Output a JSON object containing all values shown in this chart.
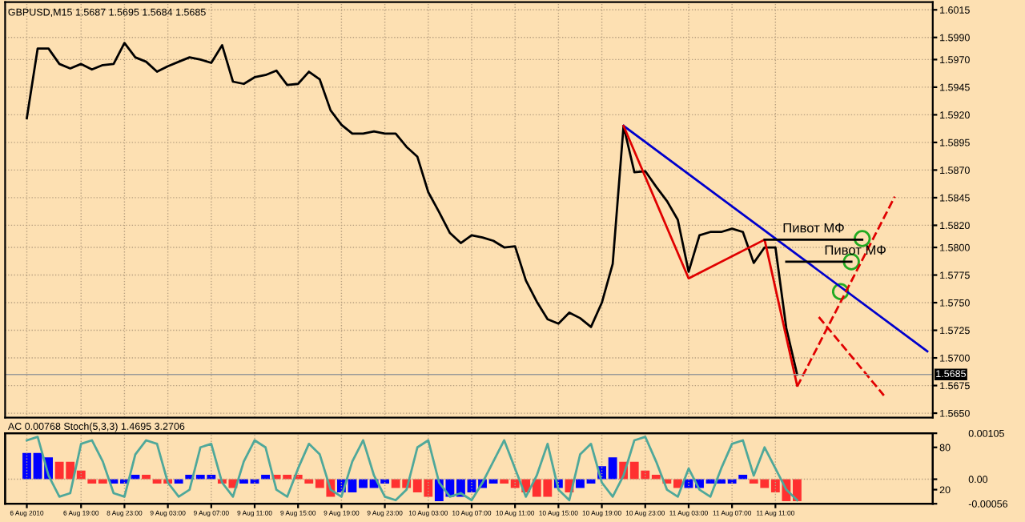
{
  "chart_data": [
    {
      "type": "line",
      "title": "GBPUSD,M15 1.5687 1.5695 1.5684 1.5685",
      "ylim": [
        1.5646,
        1.6022
      ],
      "tick_labels": "y",
      "grid": true,
      "line_style": "solid",
      "categories": [
        null,
        null,
        null,
        null,
        null,
        null,
        null,
        null,
        null,
        null,
        null,
        null,
        null,
        null,
        null,
        null,
        null,
        null,
        null,
        null,
        null,
        null,
        null,
        null,
        null,
        null,
        null,
        null,
        null,
        null,
        null,
        null,
        null,
        null,
        null,
        null,
        null,
        null,
        null,
        null,
        null,
        null,
        null,
        null,
        null,
        null,
        null,
        null,
        null,
        null,
        null,
        null,
        null,
        null,
        null,
        null,
        null,
        null,
        null,
        null,
        null,
        null,
        null,
        null,
        null,
        null,
        null,
        null,
        null,
        null,
        null,
        null,
        null,
        null,
        null,
        null,
        null,
        null,
        null,
        null,
        null,
        null,
        null,
        null
      ],
      "yticks": [
        {
          "value": 1.6015,
          "label": "1.6015"
        },
        {
          "value": 1.599,
          "label": "1.5990"
        },
        {
          "value": 1.597,
          "label": "1.5970"
        },
        {
          "value": 1.5945,
          "label": "1.5945"
        },
        {
          "value": 1.592,
          "label": "1.5920"
        },
        {
          "value": 1.5895,
          "label": "1.5895"
        },
        {
          "value": 1.587,
          "label": "1.5870"
        },
        {
          "value": 1.5845,
          "label": "1.5845"
        },
        {
          "value": 1.582,
          "label": "1.5820"
        },
        {
          "value": 1.58,
          "label": "1.5800"
        },
        {
          "value": 1.5775,
          "label": "1.5775"
        },
        {
          "value": 1.575,
          "label": "1.5750"
        },
        {
          "value": 1.5725,
          "label": "1.5725"
        },
        {
          "value": 1.57,
          "label": "1.5700"
        },
        {
          "value": 1.5675,
          "label": "1.5675"
        },
        {
          "value": 1.565,
          "label": "1.5650"
        }
      ],
      "series": [
        {
          "color": "#000000",
          "values": [
            1.5917,
            1.598,
            1.598,
            1.5966,
            1.5962,
            1.5966,
            1.5961,
            1.5965,
            1.5966,
            1.5985,
            1.5972,
            1.5968,
            1.5959,
            1.5964,
            1.5968,
            1.5972,
            1.597,
            1.5967,
            1.5983,
            1.595,
            1.5948,
            1.5954,
            1.5956,
            1.596,
            1.5947,
            1.5948,
            1.5959,
            1.5952,
            1.5924,
            1.5911,
            1.5903,
            1.5903,
            1.5905,
            1.5903,
            1.5903,
            1.5891,
            1.5882,
            1.585,
            1.5832,
            1.5813,
            1.5804,
            1.5811,
            1.5809,
            1.5806,
            1.58,
            1.5801,
            1.577,
            1.5751,
            1.5735,
            1.5731,
            1.5741,
            1.5736,
            1.5728,
            1.575,
            1.5785,
            1.591,
            1.5868,
            1.5869,
            1.5855,
            1.5842,
            1.5825,
            1.5778,
            1.5811,
            1.5814,
            1.5814,
            1.5817,
            1.5814,
            1.5786,
            1.58,
            1.58,
            1.5727,
            1.5685,
            null,
            null,
            null,
            null,
            null,
            null,
            null,
            null,
            null,
            null,
            null,
            null
          ]
        },
        {
          "color": "#0000cc",
          "values": [
            null,
            null,
            null,
            null,
            null,
            null,
            null,
            null,
            null,
            null,
            null,
            null,
            null,
            null,
            null,
            null,
            null,
            null,
            null,
            null,
            null,
            null,
            null,
            null,
            null,
            null,
            null,
            null,
            null,
            null,
            null,
            null,
            null,
            null,
            null,
            null,
            null,
            null,
            null,
            null,
            null,
            null,
            null,
            null,
            null,
            null,
            null,
            null,
            null,
            null,
            null,
            null,
            null,
            null,
            null,
            1.591,
            null,
            null,
            null,
            null,
            null,
            null,
            null,
            null,
            null,
            null,
            null,
            null,
            null,
            null,
            null,
            null,
            null,
            null,
            null,
            null,
            null,
            null,
            null,
            null,
            null,
            null,
            null,
            1.5706
          ]
        },
        {
          "color": "#e00000",
          "values": [
            null,
            null,
            null,
            null,
            null,
            null,
            null,
            null,
            null,
            null,
            null,
            null,
            null,
            null,
            null,
            null,
            null,
            null,
            null,
            null,
            null,
            null,
            null,
            null,
            null,
            null,
            null,
            null,
            null,
            null,
            null,
            null,
            null,
            null,
            null,
            null,
            null,
            null,
            null,
            null,
            null,
            null,
            null,
            null,
            null,
            null,
            null,
            null,
            null,
            null,
            null,
            null,
            null,
            null,
            null,
            1.591,
            null,
            null,
            null,
            null,
            null,
            1.5772,
            null,
            null,
            null,
            null,
            null,
            null,
            1.5807,
            null,
            null,
            1.5675,
            null,
            null,
            null,
            null,
            null,
            null,
            null,
            null,
            null,
            null,
            null,
            null
          ]
        },
        {
          "color": "#e00000",
          "line_style": "dashed",
          "values": [
            null,
            null,
            null,
            null,
            null,
            null,
            null,
            null,
            null,
            null,
            null,
            null,
            null,
            null,
            null,
            null,
            null,
            null,
            null,
            null,
            null,
            null,
            null,
            null,
            null,
            null,
            null,
            null,
            null,
            null,
            null,
            null,
            null,
            null,
            null,
            null,
            null,
            null,
            null,
            null,
            null,
            null,
            null,
            null,
            null,
            null,
            null,
            null,
            null,
            null,
            null,
            null,
            null,
            null,
            null,
            null,
            null,
            null,
            null,
            null,
            null,
            null,
            null,
            null,
            null,
            null,
            null,
            null,
            null,
            null,
            null,
            1.5674,
            null,
            null,
            null,
            null,
            null,
            null,
            null,
            null,
            1.5846,
            null,
            null,
            null
          ]
        },
        {
          "color": "#e00000",
          "line_style": "dashed",
          "values": [
            null,
            null,
            null,
            null,
            null,
            null,
            null,
            null,
            null,
            null,
            null,
            null,
            null,
            null,
            null,
            null,
            null,
            null,
            null,
            null,
            null,
            null,
            null,
            null,
            null,
            null,
            null,
            null,
            null,
            null,
            null,
            null,
            null,
            null,
            null,
            null,
            null,
            null,
            null,
            null,
            null,
            null,
            null,
            null,
            null,
            null,
            null,
            null,
            null,
            null,
            null,
            null,
            null,
            null,
            null,
            null,
            null,
            null,
            null,
            null,
            null,
            null,
            null,
            null,
            null,
            null,
            null,
            null,
            null,
            null,
            null,
            null,
            null,
            1.5737,
            null,
            null,
            null,
            null,
            null,
            1.5666,
            null,
            null,
            null,
            null
          ]
        },
        {
          "color": "#000000",
          "values": [
            null,
            null,
            null,
            null,
            null,
            null,
            null,
            null,
            null,
            null,
            null,
            null,
            null,
            null,
            null,
            null,
            null,
            null,
            null,
            null,
            null,
            null,
            null,
            null,
            null,
            null,
            null,
            null,
            null,
            null,
            null,
            null,
            null,
            null,
            null,
            null,
            null,
            null,
            null,
            null,
            null,
            null,
            null,
            null,
            null,
            null,
            null,
            null,
            null,
            null,
            null,
            null,
            null,
            null,
            null,
            null,
            null,
            null,
            null,
            null,
            null,
            null,
            null,
            null,
            null,
            null,
            null,
            null,
            1.5807,
            1.5807,
            1.5807,
            1.5807,
            1.5807,
            1.5807,
            1.5807,
            1.5807,
            1.5807,
            1.5807,
            null,
            null,
            null,
            null,
            null,
            null
          ]
        },
        {
          "color": "#000000",
          "values": [
            null,
            null,
            null,
            null,
            null,
            null,
            null,
            null,
            null,
            null,
            null,
            null,
            null,
            null,
            null,
            null,
            null,
            null,
            null,
            null,
            null,
            null,
            null,
            null,
            null,
            null,
            null,
            null,
            null,
            null,
            null,
            null,
            null,
            null,
            null,
            null,
            null,
            null,
            null,
            null,
            null,
            null,
            null,
            null,
            null,
            null,
            null,
            null,
            null,
            null,
            null,
            null,
            null,
            null,
            null,
            null,
            null,
            null,
            null,
            null,
            null,
            null,
            null,
            null,
            null,
            null,
            null,
            null,
            null,
            null,
            1.5787,
            1.5787,
            1.5787,
            1.5787,
            1.5787,
            1.5787,
            1.5787,
            null,
            null,
            null,
            null,
            null,
            null,
            null
          ]
        },
        {
          "type": "scatter",
          "color": "#22aa22",
          "marker": "circle",
          "values": [
            null,
            null,
            null,
            null,
            null,
            null,
            null,
            null,
            null,
            null,
            null,
            null,
            null,
            null,
            null,
            null,
            null,
            null,
            null,
            null,
            null,
            null,
            null,
            null,
            null,
            null,
            null,
            null,
            null,
            null,
            null,
            null,
            null,
            null,
            null,
            null,
            null,
            null,
            null,
            null,
            null,
            null,
            null,
            null,
            null,
            null,
            null,
            null,
            null,
            null,
            null,
            null,
            null,
            null,
            null,
            null,
            null,
            null,
            null,
            null,
            null,
            null,
            null,
            null,
            null,
            null,
            null,
            null,
            null,
            null,
            null,
            null,
            null,
            null,
            null,
            1.576,
            1.5787,
            1.5808,
            null,
            null,
            null,
            null,
            null,
            null
          ]
        }
      ],
      "annotations": [
        {
          "text": "Пивот МФ",
          "y": 1.5807
        },
        {
          "text": "Пивот МФ",
          "y": 1.5787
        }
      ],
      "ref_lines": [
        {
          "axis": "y",
          "value": 1.5685,
          "label": "1.5685",
          "color": "#999999"
        }
      ]
    },
    {
      "type": "bar",
      "title": "AC 0.00768 Stoch(5,3,3) 1.4695 3.2706",
      "ylim": [
        -0.00056,
        0.00105
      ],
      "grid": true,
      "categories": [
        "6 Aug 2010",
        null,
        null,
        null,
        null,
        "6 Aug 19:00",
        null,
        null,
        null,
        "8 Aug 23:00",
        null,
        null,
        null,
        "9 Aug 03:00",
        null,
        null,
        null,
        "9 Aug 07:00",
        null,
        null,
        null,
        "9 Aug 11:00",
        null,
        null,
        null,
        "9 Aug 15:00",
        null,
        null,
        null,
        "9 Aug 19:00",
        null,
        null,
        null,
        "9 Aug 23:00",
        null,
        null,
        null,
        "10 Aug 03:00",
        null,
        null,
        null,
        "10 Aug 07:00",
        null,
        null,
        null,
        "10 Aug 11:00",
        null,
        null,
        null,
        "10 Aug 15:00",
        null,
        null,
        null,
        "10 Aug 19:00",
        null,
        null,
        null,
        "10 Aug 23:00",
        null,
        null,
        null,
        "11 Aug 03:00",
        null,
        null,
        null,
        "11 Aug 07:00",
        null,
        null,
        null,
        "11 Aug 11:00",
        null,
        null,
        null,
        null,
        null,
        null,
        null,
        null,
        null,
        null,
        null,
        null,
        null,
        null
      ],
      "yticks": [
        {
          "value": 0.00105,
          "label": "0.00105"
        },
        {
          "value": 0,
          "label": "0.00"
        },
        {
          "value": -0.00056,
          "label": "-0.00056"
        }
      ],
      "y2lim": [
        0,
        100
      ],
      "y2ticks": [
        80,
        20
      ],
      "series": [
        {
          "values": [
            0.0006,
            0.0006,
            0.0005,
            0.0004,
            0.0004,
            0.0002,
            -0.0001,
            -0.0001,
            -0.0001,
            -0.0001,
            0.0001,
            0.0001,
            -0.0001,
            -0.0001,
            -0.0001,
            0.0001,
            0.0001,
            0.0001,
            -0.0001,
            -0.0002,
            -0.0001,
            -0.0001,
            0.0001,
            0.0001,
            0.0001,
            0.0001,
            -0.0001,
            -0.0002,
            -0.0004,
            -0.0003,
            -0.0003,
            -0.0002,
            -0.0002,
            -0.0001,
            -0.0002,
            -0.0002,
            -0.0003,
            -0.0004,
            -0.0005,
            -0.0004,
            -0.0004,
            -0.0003,
            -0.0002,
            -0.0001,
            -0.0001,
            -0.0002,
            -0.0003,
            -0.0004,
            -0.0004,
            -0.0002,
            -0.0003,
            -0.0002,
            -0.0001,
            0.0003,
            0.0005,
            0.0004,
            0.0004,
            0.0002,
            0.0001,
            -0.0001,
            -0.0002,
            -0.0002,
            -0.0002,
            -0.0001,
            -0.0001,
            -0.0001,
            0.0001,
            -0.0001,
            -0.0002,
            -0.0003,
            -0.0005,
            -0.0005,
            null,
            null,
            null,
            null,
            null,
            null,
            null,
            null,
            null,
            null,
            null,
            null
          ],
          "colors": [
            "#0000ff",
            "#0000ff",
            "#0000ff",
            "#ff3030",
            "#ff3030",
            "#ff3030",
            "#ff3030",
            "#ff3030",
            "#0000ff",
            "#0000ff",
            "#0000ff",
            "#ff3030",
            "#ff3030",
            "#ff3030",
            "#0000ff",
            "#0000ff",
            "#0000ff",
            "#0000ff",
            "#ff3030",
            "#ff3030",
            "#0000ff",
            "#0000ff",
            "#0000ff",
            "#ff3030",
            "#ff3030",
            "#ff3030",
            "#ff3030",
            "#ff3030",
            "#ff3030",
            "#0000ff",
            "#0000ff",
            "#0000ff",
            "#0000ff",
            "#0000ff",
            "#ff3030",
            "#ff3030",
            "#ff3030",
            "#ff3030",
            "#0000ff",
            "#0000ff",
            "#0000ff",
            "#0000ff",
            "#0000ff",
            "#0000ff",
            "#ff3030",
            "#ff3030",
            "#ff3030",
            "#ff3030",
            "#ff3030",
            "#0000ff",
            "#ff3030",
            "#0000ff",
            "#0000ff",
            "#0000ff",
            "#0000ff",
            "#ff3030",
            "#ff3030",
            "#ff3030",
            "#ff3030",
            "#ff3030",
            "#ff3030",
            "#0000ff",
            "#0000ff",
            "#0000ff",
            "#0000ff",
            "#0000ff",
            "#0000ff",
            "#ff3030",
            "#ff3030",
            "#ff3030",
            "#ff3030",
            "#ff3030",
            null,
            null,
            null,
            null,
            null,
            null,
            null,
            null,
            null,
            null,
            null,
            null
          ]
        },
        {
          "type": "line",
          "axis": "y2",
          "color": "#4fa89a",
          "values": [
            90,
            95,
            40,
            10,
            15,
            85,
            90,
            60,
            15,
            10,
            70,
            90,
            85,
            30,
            10,
            20,
            80,
            85,
            30,
            10,
            60,
            90,
            80,
            20,
            10,
            50,
            85,
            70,
            20,
            10,
            60,
            90,
            40,
            10,
            5,
            20,
            80,
            90,
            30,
            10,
            15,
            5,
            30,
            60,
            90,
            50,
            10,
            40,
            85,
            20,
            5,
            70,
            85,
            30,
            10,
            40,
            90,
            95,
            60,
            20,
            10,
            50,
            20,
            10,
            50,
            85,
            90,
            40,
            80,
            50,
            20,
            5,
            null,
            null,
            null,
            null,
            null,
            null,
            null,
            null,
            null,
            null,
            null,
            null
          ]
        }
      ]
    }
  ]
}
